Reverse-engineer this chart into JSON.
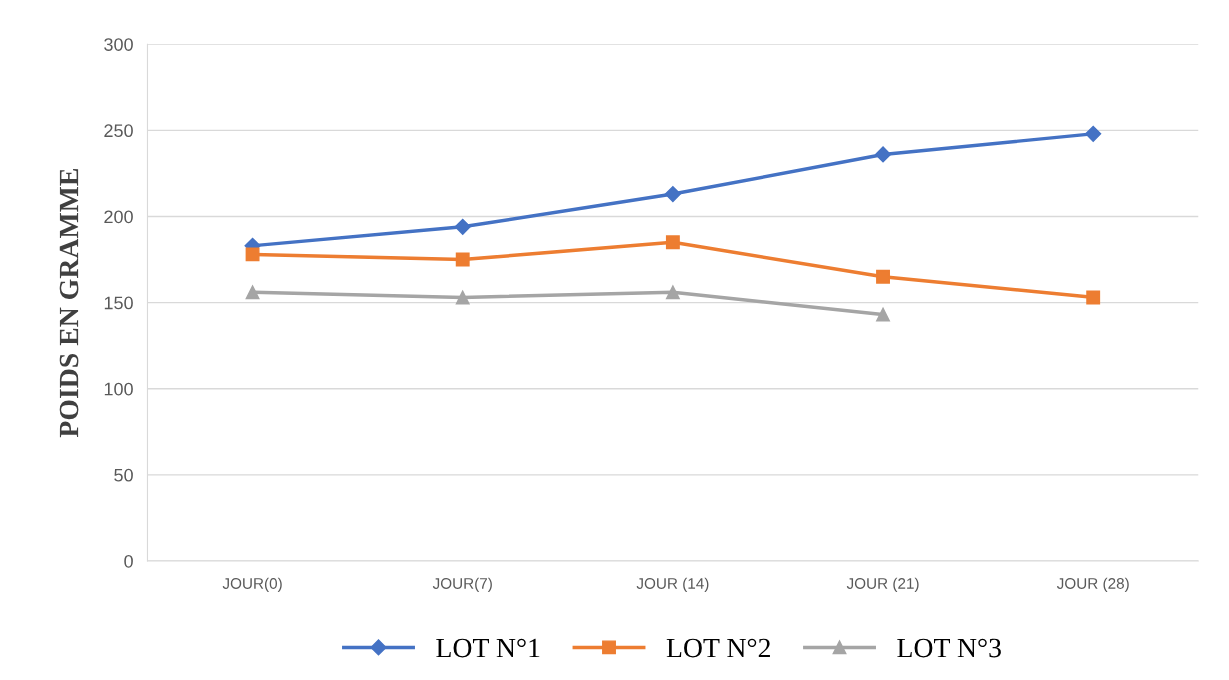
{
  "chart_data": {
    "type": "line",
    "ylabel": "POIDS EN GRAMME",
    "categories": [
      "JOUR(0)",
      "JOUR(7)",
      "JOUR (14)",
      "JOUR (21)",
      "JOUR (28)"
    ],
    "series": [
      {
        "name": "LOT N°1",
        "color": "#4472c4",
        "marker": "diamond",
        "values": [
          183,
          194,
          213,
          236,
          248
        ]
      },
      {
        "name": "LOT N°2",
        "color": "#ed7d31",
        "marker": "square",
        "values": [
          178,
          175,
          185,
          165,
          153
        ]
      },
      {
        "name": "LOT N°3",
        "color": "#a5a5a5",
        "marker": "triangle",
        "values": [
          156,
          153,
          156,
          143,
          null
        ]
      }
    ],
    "ylim": [
      0,
      300
    ],
    "yticks": [
      0,
      50,
      100,
      150,
      200,
      250,
      300
    ],
    "grid": "y",
    "legend": "bottom",
    "line_style": "solid"
  }
}
